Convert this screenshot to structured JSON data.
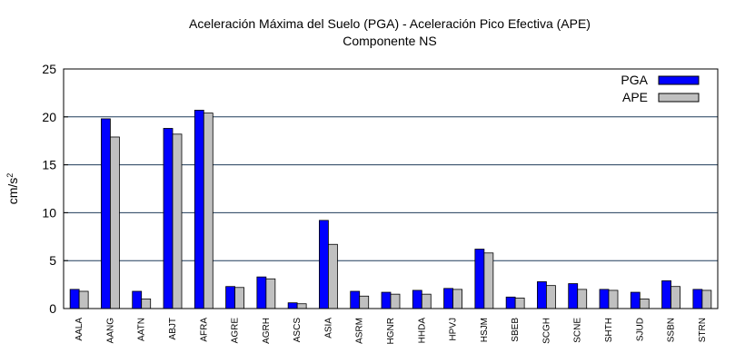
{
  "chart_data": {
    "type": "bar",
    "title": "Aceleración Máxima del Suelo (PGA) -  Aceleración Pico Efectiva (APE)",
    "subtitle": "Componente NS",
    "xlabel": "",
    "ylabel": "cm/s",
    "ylabel_superscript": "2",
    "ylim": [
      0,
      25
    ],
    "yticks": [
      "0",
      "5",
      "10",
      "15",
      "20",
      "25"
    ],
    "grid": true,
    "legend_position": "top-right",
    "categories": [
      "AALA",
      "AANG",
      "AATN",
      "ABJT",
      "AFRA",
      "AGRE",
      "AGRH",
      "ASCS",
      "ASIA",
      "ASRM",
      "HGNR",
      "HHDA",
      "HPVJ",
      "HSJM",
      "SBEB",
      "SCGH",
      "SCNE",
      "SHTH",
      "SJUD",
      "SSBN",
      "STRN"
    ],
    "series": [
      {
        "name": "PGA",
        "color": "#0000ff",
        "values": [
          2.0,
          19.8,
          1.8,
          18.8,
          20.7,
          2.3,
          3.3,
          0.6,
          9.2,
          1.8,
          1.7,
          1.9,
          2.1,
          6.2,
          1.2,
          2.8,
          2.6,
          2.0,
          1.7,
          2.9,
          2.0
        ]
      },
      {
        "name": "APE",
        "color": "#c0c0c0",
        "values": [
          1.8,
          17.9,
          1.0,
          18.2,
          20.4,
          2.2,
          3.1,
          0.5,
          6.7,
          1.3,
          1.5,
          1.5,
          2.0,
          5.8,
          1.1,
          2.4,
          2.0,
          1.9,
          1.0,
          2.3,
          1.9
        ]
      }
    ]
  }
}
